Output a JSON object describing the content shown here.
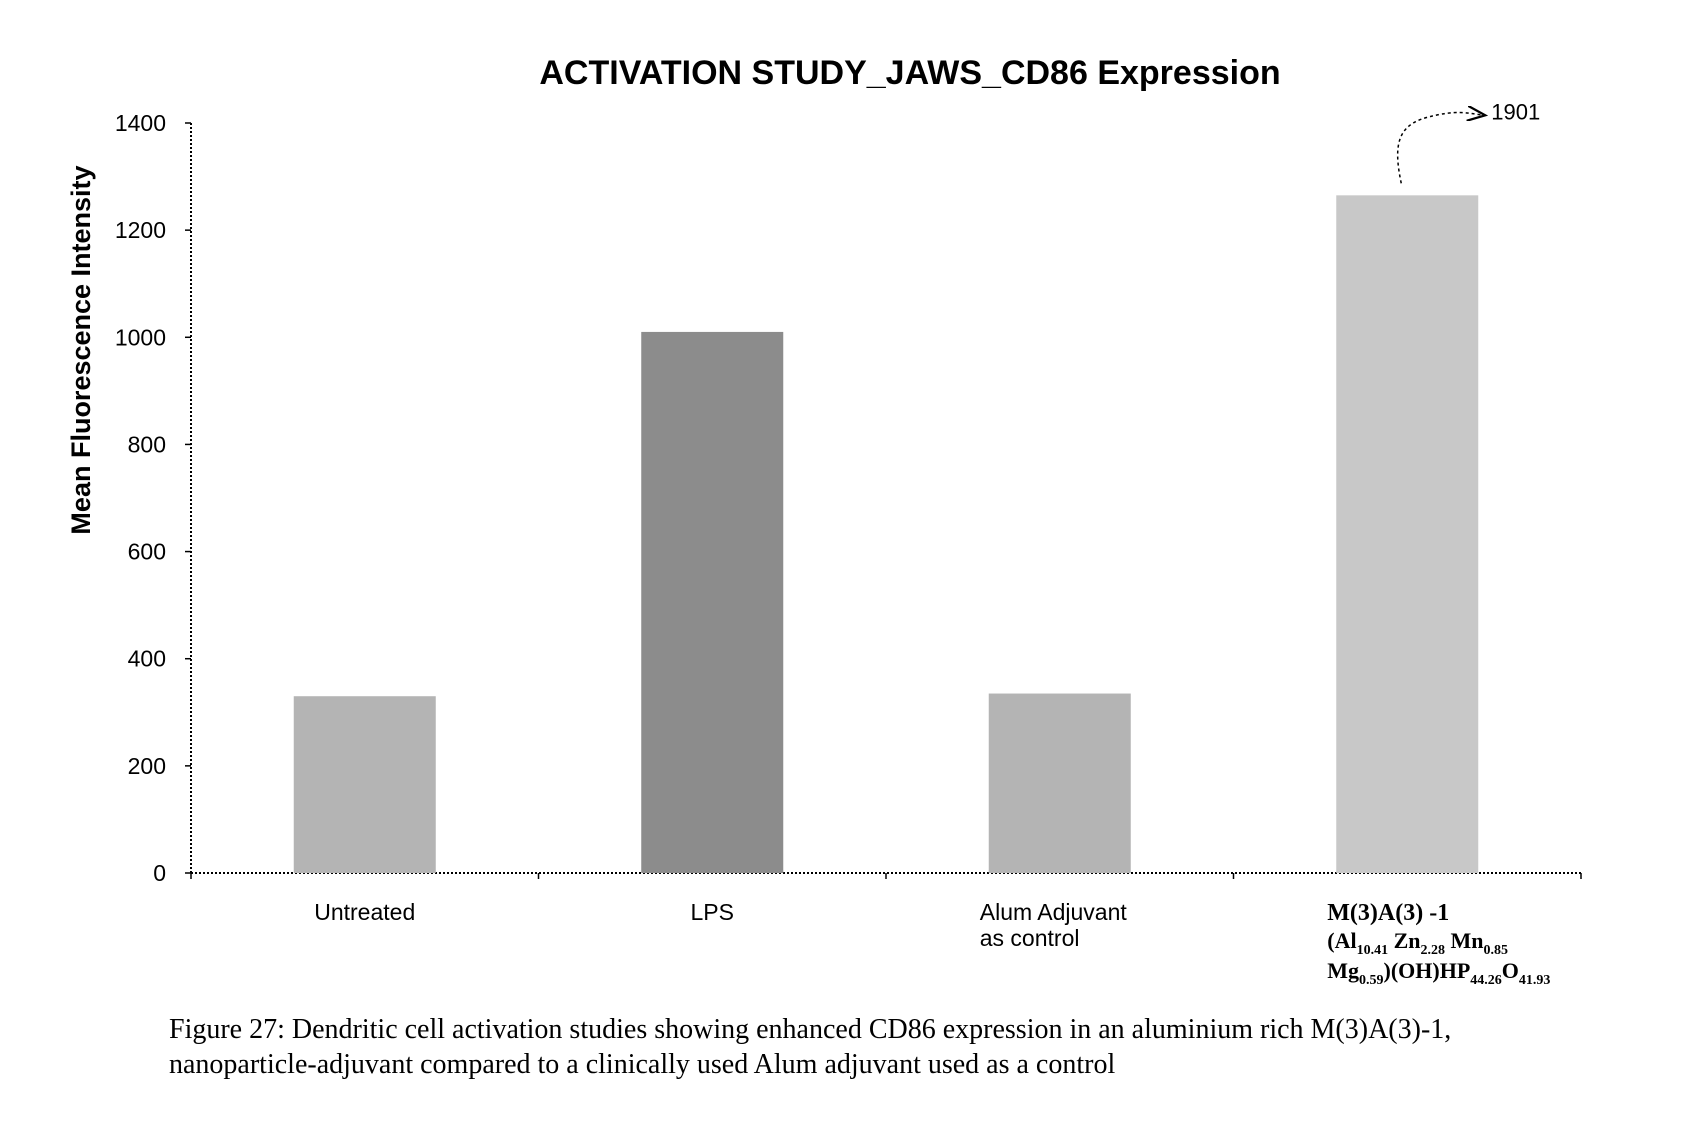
{
  "chart_data": {
    "type": "bar",
    "title": "ACTIVATION STUDY_JAWS_CD86 Expression",
    "y_label": "Mean Fluorescence Intensity",
    "categories": [
      [
        "Untreated"
      ],
      [
        "LPS"
      ],
      [
        "Alum Adjuvant",
        "as control"
      ],
      [
        "M(3)A(3) -1"
      ]
    ],
    "formula_lines": [
      [
        [
          "(Al",
          "10.41"
        ],
        [
          " Zn",
          "2.28"
        ],
        [
          " Mn",
          "0.85"
        ]
      ],
      [
        [
          "Mg",
          "0.59"
        ],
        [
          ")(OH)HP",
          "44.26"
        ],
        [
          "O",
          "41.93"
        ]
      ]
    ],
    "values": [
      330,
      1010,
      335,
      1901
    ],
    "value_labels": [
      null,
      null,
      null,
      "1901"
    ],
    "axis_break": 1265,
    "colors": [
      "#b4b4b4",
      "#8c8c8c",
      "#b4b4b4",
      "#c8c8c8"
    ],
    "ylim": [
      0,
      1400
    ],
    "yticks": [
      0,
      200,
      400,
      600,
      800,
      1000,
      1200,
      1400
    ],
    "caption": [
      "Figure 27: Dendritic cell activation studies showing enhanced CD86 expression in an aluminium rich  M(3)A(3)-1,",
      "nanoparticle-adjuvant compared to a clinically used Alum adjuvant used as a control"
    ]
  }
}
